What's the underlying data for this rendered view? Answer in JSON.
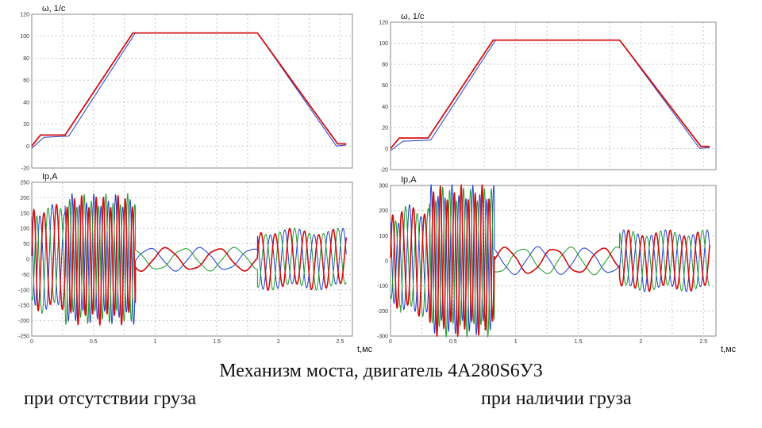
{
  "caption": {
    "main": "Механизм моста, двигатель 4А280S6У3",
    "left": "при отсутствии груза",
    "right": "при наличии груза"
  },
  "colors": {
    "phase_a": "#d01010",
    "phase_b": "#1f3fd6",
    "phase_c": "#1f9a2a",
    "ref": "#d01010",
    "actual": "#2a3ec8",
    "grid": "#bdbdbd",
    "frame": "#888888"
  },
  "chart_data": [
    {
      "type": "line",
      "panel": "left-top",
      "ylabel": "ω, 1/с",
      "xlabel": "",
      "xlim": [
        0,
        2.6
      ],
      "ylim": [
        -20,
        120
      ],
      "yticks": [
        "120",
        "100",
        "80",
        "60",
        "40",
        "20",
        "0",
        "-20"
      ],
      "xticks": [],
      "series": [
        {
          "role": "ref",
          "x": [
            0,
            0.07,
            0.27,
            0.82,
            1.83,
            2.48,
            2.55
          ],
          "y": [
            0,
            10,
            10,
            103,
            103,
            2,
            2
          ]
        },
        {
          "role": "actual",
          "x": [
            0,
            0.1,
            0.3,
            0.84,
            1.83,
            2.47,
            2.55
          ],
          "y": [
            -2,
            8,
            9,
            103,
            103,
            0,
            1
          ]
        }
      ]
    },
    {
      "type": "line",
      "panel": "left-bottom",
      "ylabel": "Iр,А",
      "xlabel": "t,мс",
      "xlim": [
        0,
        2.6
      ],
      "ylim": [
        -250,
        250
      ],
      "yticks": [
        "250",
        "200",
        "150",
        "100",
        "50",
        "0",
        "-50",
        "-100",
        "-150",
        "-200",
        "-250"
      ],
      "xticks": [
        "0",
        "0.5",
        "1",
        "1.5",
        "2",
        "2.5"
      ],
      "regions": [
        {
          "x": [
            0,
            0.06
          ],
          "amp": 150,
          "freq": 14
        },
        {
          "x": [
            0.06,
            0.27
          ],
          "amp": 160,
          "freq": 10
        },
        {
          "x": [
            0.27,
            0.84
          ],
          "amp": 190,
          "freq": 17
        },
        {
          "x": [
            0.84,
            1.83
          ],
          "amp": 35,
          "freq": 2.4
        },
        {
          "x": [
            1.83,
            2.55
          ],
          "amp": 90,
          "freq": 8.5
        }
      ]
    },
    {
      "type": "line",
      "panel": "right-top",
      "ylabel": "ω, 1/с",
      "xlabel": "",
      "xlim": [
        0,
        2.6
      ],
      "ylim": [
        -20,
        120
      ],
      "yticks": [
        "120",
        "100",
        "80",
        "60",
        "40",
        "20",
        "0",
        "-20"
      ],
      "xticks": [],
      "series": [
        {
          "role": "ref",
          "x": [
            0,
            0.07,
            0.3,
            0.82,
            1.83,
            2.48,
            2.55
          ],
          "y": [
            0,
            10,
            10,
            103,
            103,
            2,
            2
          ]
        },
        {
          "role": "actual",
          "x": [
            0,
            0.1,
            0.32,
            0.84,
            1.83,
            2.47,
            2.55
          ],
          "y": [
            -2,
            7,
            8,
            103,
            103,
            0,
            1
          ]
        }
      ]
    },
    {
      "type": "line",
      "panel": "right-bottom",
      "ylabel": "Iр,А",
      "xlabel": "t,мс",
      "xlim": [
        0,
        2.6
      ],
      "ylim": [
        -300,
        300
      ],
      "yticks": [
        "300",
        "200",
        "100",
        "0",
        "-100",
        "-200",
        "-300"
      ],
      "xticks": [
        "0",
        "0.5",
        "1",
        "1.5",
        "2",
        "2.5"
      ],
      "regions": [
        {
          "x": [
            0,
            0.08
          ],
          "amp": 170,
          "freq": 14
        },
        {
          "x": [
            0.08,
            0.31
          ],
          "amp": 200,
          "freq": 11
        },
        {
          "x": [
            0.31,
            0.83
          ],
          "amp": 270,
          "freq": 18
        },
        {
          "x": [
            0.83,
            1.83
          ],
          "amp": 50,
          "freq": 2.6
        },
        {
          "x": [
            1.83,
            2.55
          ],
          "amp": 110,
          "freq": 9
        }
      ]
    }
  ]
}
